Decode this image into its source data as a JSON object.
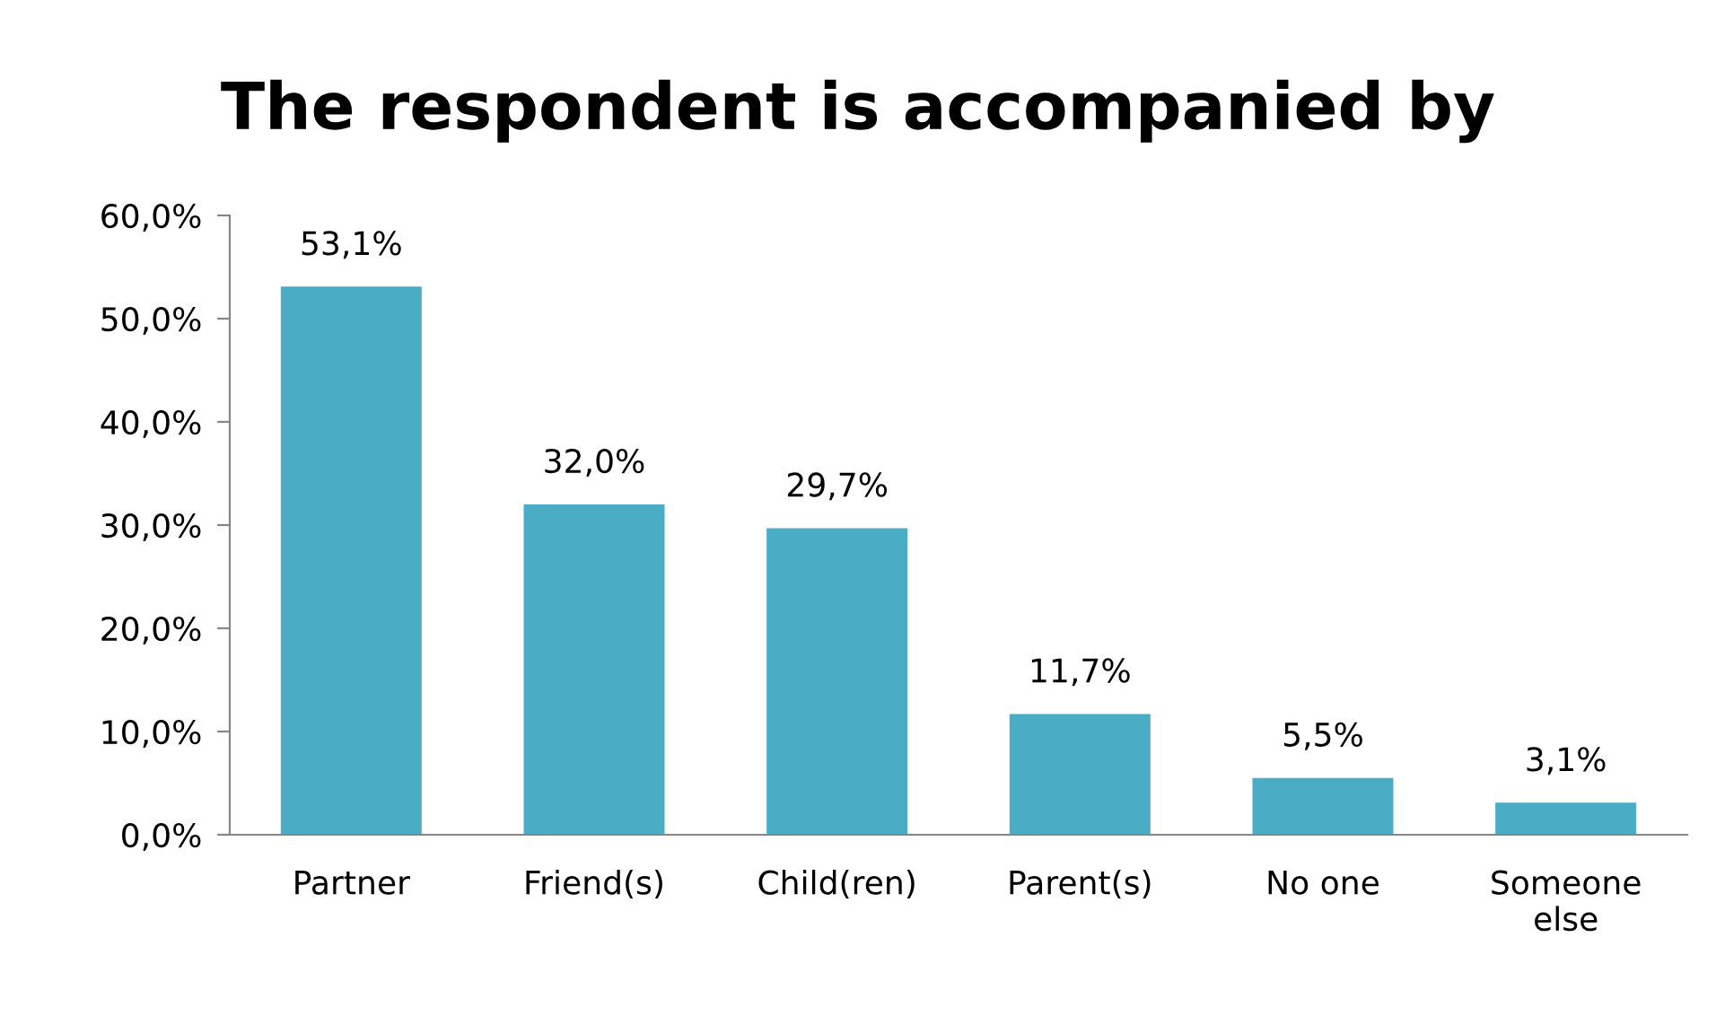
{
  "chart_data": {
    "type": "bar",
    "title": "The respondent is accompanied by",
    "categories": [
      "Partner",
      "Friend(s)",
      "Child(ren)",
      "Parent(s)",
      "No one",
      "Someone\nelse"
    ],
    "values": [
      53.1,
      32.0,
      29.7,
      11.7,
      5.5,
      3.1
    ],
    "value_labels": [
      "53,1%",
      "32,0%",
      "29,7%",
      "11,7%",
      "5,5%",
      "3,1%"
    ],
    "color": "#4bacc6",
    "ylim": [
      0,
      60
    ],
    "yticks": [
      {
        "value": 0,
        "label": "0,0%"
      },
      {
        "value": 10,
        "label": "10,0%"
      },
      {
        "value": 20,
        "label": "20,0%"
      },
      {
        "value": 30,
        "label": "30,0%"
      },
      {
        "value": 40,
        "label": "40,0%"
      },
      {
        "value": 50,
        "label": "50,0%"
      },
      {
        "value": 60,
        "label": "60,0%"
      }
    ],
    "grid": false,
    "legend": false
  }
}
